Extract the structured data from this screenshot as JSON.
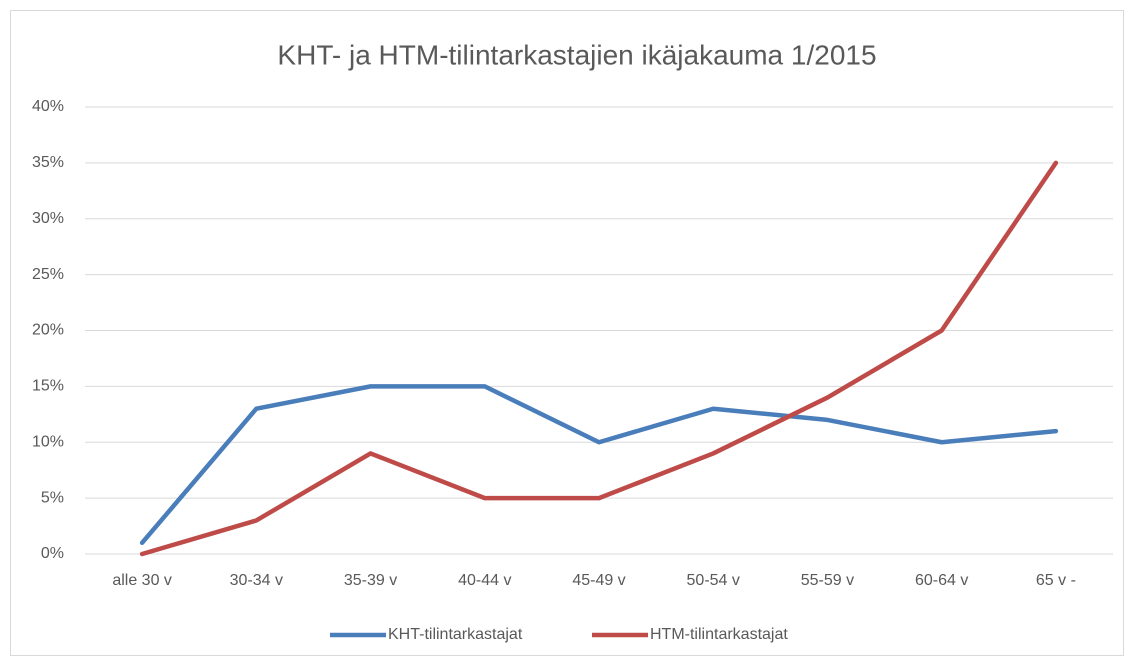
{
  "chart_data": {
    "type": "line",
    "title": "KHT- ja HTM-tilintarkastajien ikäjakauma 1/2015",
    "categories": [
      "alle 30 v",
      "30-34 v",
      "35-39 v",
      "40-44 v",
      "45-49 v",
      "50-54 v",
      "55-59 v",
      "60-64 v",
      "65 v -"
    ],
    "series": [
      {
        "name": "KHT-tilintarkastajat",
        "color": "#4a7ebb",
        "values": [
          1,
          13,
          15,
          15,
          10,
          13,
          12,
          10,
          11
        ]
      },
      {
        "name": "HTM-tilintarkastajat",
        "color": "#be4b48",
        "values": [
          0,
          3,
          9,
          5,
          5,
          9,
          14,
          20,
          35
        ]
      }
    ],
    "ylim": [
      0,
      40
    ],
    "yticks": [
      {
        "value": 0,
        "label": "0%"
      },
      {
        "value": 5,
        "label": "5%"
      },
      {
        "value": 10,
        "label": "10%"
      },
      {
        "value": 15,
        "label": "15%"
      },
      {
        "value": 20,
        "label": "20%"
      },
      {
        "value": 25,
        "label": "25%"
      },
      {
        "value": 30,
        "label": "30%"
      },
      {
        "value": 35,
        "label": "35%"
      },
      {
        "value": 40,
        "label": "40%"
      }
    ],
    "grid": true,
    "legend": "bottom"
  }
}
